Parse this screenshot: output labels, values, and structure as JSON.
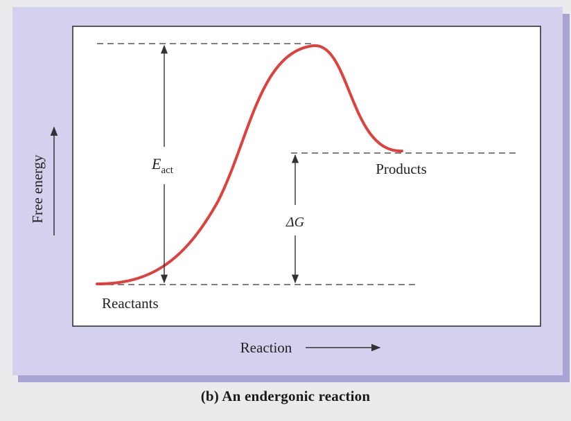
{
  "diagram": {
    "y_axis_label": "Free energy",
    "x_axis_label": "Reaction",
    "reactants_label": "Reactants",
    "products_label": "Products",
    "activation_energy_symbol": "E",
    "activation_energy_subscript": "act",
    "delta_g_label": "ΔG",
    "caption": "(b) An endergonic reaction"
  },
  "colors": {
    "panel_background": "#d4d1ee",
    "plot_background": "#ffffff",
    "curve": "#e0403c",
    "frame": "#333333",
    "dashes": "#333333",
    "arrows": "#333333"
  }
}
